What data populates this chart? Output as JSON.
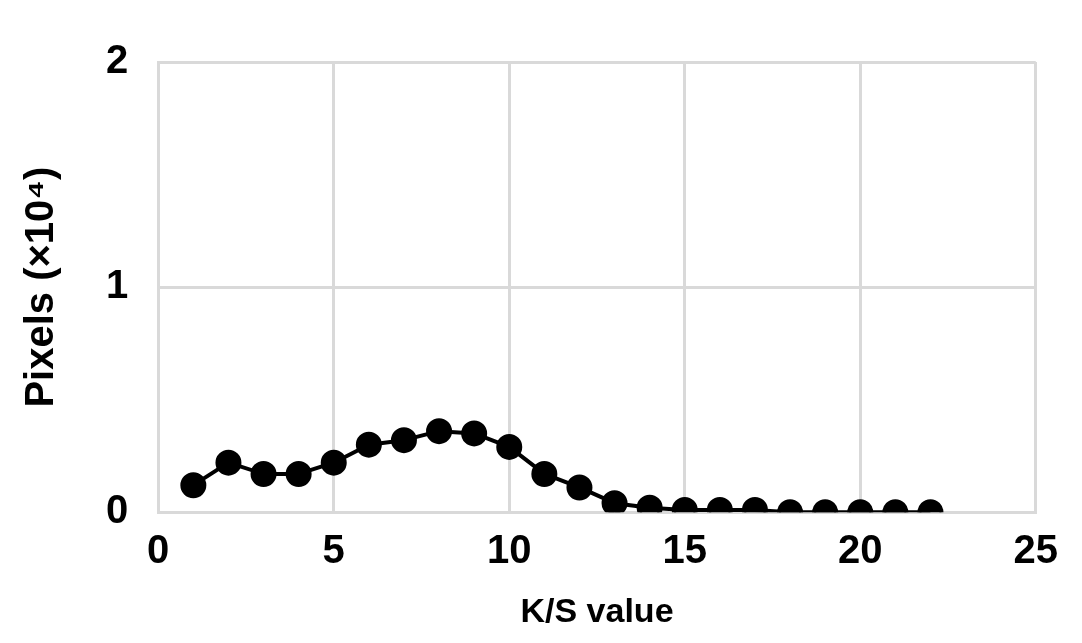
{
  "chart_data": {
    "type": "line",
    "xlabel": "K/S value",
    "ylabel": "Pixels (×10⁴)",
    "x": [
      1,
      2,
      3,
      4,
      5,
      6,
      7,
      8,
      9,
      10,
      11,
      12,
      13,
      14,
      15,
      16,
      17,
      18,
      19,
      20,
      21,
      22
    ],
    "series": [
      {
        "color": "#000000",
        "values": [
          0.12,
          0.22,
          0.17,
          0.17,
          0.22,
          0.3,
          0.32,
          0.36,
          0.35,
          0.29,
          0.17,
          0.11,
          0.04,
          0.02,
          0.01,
          0.01,
          0.01,
          0,
          0,
          0,
          0,
          0
        ]
      }
    ],
    "xlim": [
      0,
      25
    ],
    "xticks": [
      0,
      5,
      10,
      15,
      20,
      25
    ],
    "ylim": [
      0,
      2
    ],
    "yticks": [
      0,
      1,
      2
    ],
    "grid": true,
    "legend": false,
    "marker": "circle",
    "line_style": "solid"
  }
}
